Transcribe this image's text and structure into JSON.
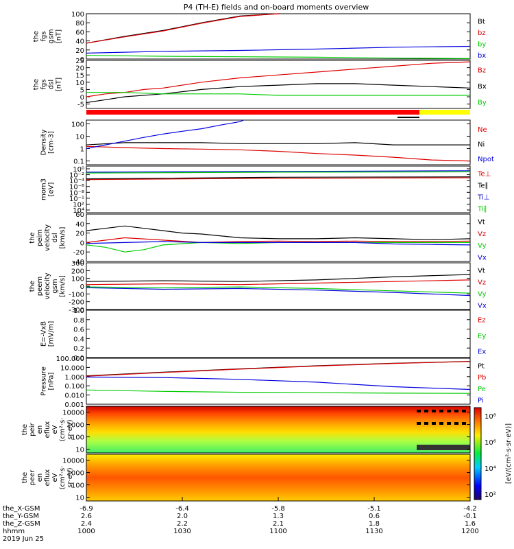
{
  "title": "P4 (TH-E) fields and on-board moments overview",
  "colors": {
    "black": "#000000",
    "red": "#dd0000",
    "green": "#00cc00",
    "blue": "#0000dd",
    "bar_red": "#ff0000",
    "bar_yellow": "#ffff00"
  },
  "x_labels": {
    "rows": [
      {
        "name": "the_X-GSM",
        "values": [
          "-6.9",
          "-6.4",
          "-5.8",
          "-5.1",
          "-4.2"
        ]
      },
      {
        "name": "the_Y-GSM",
        "values": [
          "2.6",
          "2.0",
          "1.3",
          "0.6",
          "-0.1"
        ]
      },
      {
        "name": "the_Z-GSM",
        "values": [
          "2.4",
          "2.2",
          "2.1",
          "1.8",
          "1.6"
        ]
      },
      {
        "name": "hhmm",
        "values": [
          "1000",
          "1030",
          "1100",
          "1130",
          "1200"
        ]
      }
    ],
    "date": "2019 Jun 25"
  },
  "chart_data": [
    {
      "type": "line",
      "ylabel": [
        "the",
        "fgs",
        "gsm",
        "[nT]"
      ],
      "ylim": [
        0,
        100
      ],
      "yticks": [
        "0",
        "20",
        "40",
        "60",
        "80",
        "100"
      ],
      "series": [
        {
          "name": "Bt",
          "color": "black",
          "x": [
            0,
            10,
            20,
            30,
            40,
            50,
            50.5
          ],
          "y": [
            35,
            50,
            63,
            80,
            95,
            100,
            100
          ]
        },
        {
          "name": "bz",
          "color": "red",
          "x": [
            0,
            10,
            20,
            30,
            40,
            50,
            50.5
          ],
          "y": [
            35,
            49,
            62,
            79,
            94,
            100,
            100
          ]
        },
        {
          "name": "by",
          "color": "green",
          "x": [
            0,
            20,
            40,
            60,
            80,
            100
          ],
          "y": [
            8,
            6,
            5,
            4,
            2,
            1
          ]
        },
        {
          "name": "bx",
          "color": "blue",
          "x": [
            0,
            20,
            40,
            60,
            80,
            100
          ],
          "y": [
            13,
            17,
            19,
            22,
            26,
            28
          ]
        }
      ]
    },
    {
      "type": "line",
      "ylabel": [
        "the",
        "fgs",
        "dsl",
        "[nT]"
      ],
      "ylim": [
        -8,
        25
      ],
      "yticks": [
        "-5",
        "0",
        "5",
        "10",
        "15",
        "20",
        "25"
      ],
      "series": [
        {
          "name": "Bz",
          "color": "red",
          "x": [
            0,
            5,
            10,
            15,
            20,
            30,
            40,
            50,
            60,
            70,
            80,
            90,
            100
          ],
          "y": [
            0,
            2,
            3,
            5,
            6,
            10,
            13,
            15,
            17,
            19,
            21,
            23,
            24
          ]
        },
        {
          "name": "Bx",
          "color": "black",
          "x": [
            0,
            5,
            10,
            20,
            30,
            40,
            50,
            60,
            70,
            80,
            90,
            100
          ],
          "y": [
            -4,
            -2,
            0,
            2,
            5,
            7,
            8,
            9,
            9,
            8,
            7,
            6
          ]
        },
        {
          "name": "By",
          "color": "green",
          "x": [
            0,
            10,
            20,
            30,
            40,
            50,
            60,
            70,
            80,
            90,
            100
          ],
          "y": [
            3,
            3,
            2,
            2,
            2,
            1,
            1,
            1,
            1,
            1,
            1
          ]
        }
      ]
    },
    {
      "type": "line",
      "ylabel": [
        "Density",
        "[cm-3]"
      ],
      "yscale": "log",
      "ylim": [
        0.05,
        200
      ],
      "yticks": [
        "0.1",
        "1",
        "10",
        "100"
      ],
      "series": [
        {
          "name": "Ne",
          "color": "red",
          "x": [
            0,
            10,
            20,
            30,
            40,
            50,
            60,
            70,
            80,
            90,
            100
          ],
          "y": [
            1.5,
            1.2,
            1,
            0.9,
            0.8,
            0.6,
            0.4,
            0.3,
            0.2,
            0.12,
            0.1
          ]
        },
        {
          "name": "Ni",
          "color": "black",
          "x": [
            0,
            10,
            20,
            30,
            40,
            50,
            60,
            70,
            80,
            90,
            100
          ],
          "y": [
            2,
            3,
            3,
            3,
            2.5,
            2.5,
            2.5,
            3,
            2,
            2,
            2
          ]
        },
        {
          "name": "Npot",
          "color": "blue",
          "x": [
            0,
            5,
            10,
            15,
            20,
            25,
            30,
            35,
            40,
            41
          ],
          "y": [
            1,
            2,
            4,
            8,
            15,
            25,
            40,
            80,
            150,
            200
          ]
        }
      ]
    },
    {
      "type": "line",
      "ylabel": [
        "mom3",
        "[eV]"
      ],
      "yscale": "log",
      "ylim": [
        1,
        10000
      ],
      "yticks": [
        "10⁰",
        "10⁻²",
        "10⁻⁴",
        "10⁻⁶",
        "10⁻⁸",
        "10⁻¹",
        "10²",
        "10⁴"
      ],
      "series": [
        {
          "name": "Te⊥",
          "color": "red",
          "x": [
            0,
            50,
            100
          ],
          "y": [
            700,
            900,
            1000
          ]
        },
        {
          "name": "Te∥",
          "color": "black",
          "x": [
            0,
            50,
            100
          ],
          "y": [
            800,
            1100,
            1200
          ]
        },
        {
          "name": "Ti⊥",
          "color": "blue",
          "x": [
            0,
            50,
            100
          ],
          "y": [
            3000,
            3500,
            4000
          ]
        },
        {
          "name": "Ti∥",
          "color": "green",
          "x": [
            0,
            50,
            100
          ],
          "y": [
            2500,
            3000,
            3200
          ]
        }
      ]
    },
    {
      "type": "line",
      "ylabel": [
        "the",
        "peim",
        "velocity",
        "dsl",
        "[km/s]"
      ],
      "ylim": [
        -40,
        60
      ],
      "yticks": [
        "-40",
        "-20",
        "0",
        "20",
        "40",
        "60"
      ],
      "series": [
        {
          "name": "Vt",
          "color": "black",
          "x": [
            0,
            5,
            10,
            15,
            20,
            25,
            30,
            40,
            50,
            60,
            70,
            80,
            90,
            100
          ],
          "y": [
            25,
            30,
            35,
            30,
            25,
            20,
            18,
            10,
            8,
            8,
            10,
            8,
            6,
            8
          ]
        },
        {
          "name": "Vz",
          "color": "red",
          "x": [
            0,
            10,
            20,
            30,
            40,
            50,
            60,
            70,
            80,
            90,
            100
          ],
          "y": [
            0,
            10,
            5,
            0,
            2,
            3,
            2,
            3,
            2,
            2,
            3
          ]
        },
        {
          "name": "Vy",
          "color": "green",
          "x": [
            0,
            5,
            10,
            15,
            20,
            30,
            40,
            50,
            60,
            70,
            80,
            90,
            100
          ],
          "y": [
            -5,
            -10,
            -20,
            -15,
            -5,
            0,
            -2,
            0,
            0,
            0,
            0,
            0,
            0
          ]
        },
        {
          "name": "Vx",
          "color": "blue",
          "x": [
            0,
            10,
            20,
            30,
            40,
            50,
            60,
            70,
            80,
            90,
            100
          ],
          "y": [
            -2,
            0,
            2,
            0,
            0,
            0,
            0,
            0,
            -3,
            -4,
            -5
          ]
        }
      ]
    },
    {
      "type": "line",
      "ylabel": [
        "the",
        "peem",
        "velocity",
        "gsm",
        "[km/s]"
      ],
      "ylim": [
        -300,
        300
      ],
      "yticks": [
        "-300",
        "-200",
        "-100",
        "0",
        "100",
        "200",
        "300"
      ],
      "series": [
        {
          "name": "Vt",
          "color": "black",
          "x": [
            0,
            20,
            40,
            60,
            80,
            100
          ],
          "y": [
            60,
            70,
            60,
            80,
            120,
            150
          ]
        },
        {
          "name": "Vz",
          "color": "red",
          "x": [
            0,
            20,
            40,
            60,
            80,
            100
          ],
          "y": [
            20,
            30,
            20,
            40,
            60,
            80
          ]
        },
        {
          "name": "Vy",
          "color": "green",
          "x": [
            0,
            20,
            40,
            60,
            80,
            100
          ],
          "y": [
            -10,
            -20,
            -10,
            -30,
            -60,
            -90
          ]
        },
        {
          "name": "Vx",
          "color": "blue",
          "x": [
            0,
            20,
            40,
            60,
            80,
            100
          ],
          "y": [
            -20,
            -40,
            -30,
            -50,
            -80,
            -120
          ]
        }
      ]
    },
    {
      "type": "line",
      "ylabel": [
        "E=-VxB",
        "[mV/m]"
      ],
      "ylim": [
        0,
        1
      ],
      "yticks": [
        "0.0",
        "0.2",
        "0.4",
        "0.6",
        "0.8",
        "1.0"
      ],
      "series": [
        {
          "name": "Ez",
          "color": "red",
          "x": [],
          "y": []
        },
        {
          "name": "Ey",
          "color": "green",
          "x": [],
          "y": []
        },
        {
          "name": "Ex",
          "color": "blue",
          "x": [],
          "y": []
        }
      ]
    },
    {
      "type": "line",
      "ylabel": [
        "Pressure",
        "[nPa]"
      ],
      "yscale": "log",
      "ylim": [
        0.001,
        100
      ],
      "yticks": [
        "0.001",
        "0.010",
        "0.100",
        "1.000",
        "10.000",
        "100.000"
      ],
      "series": [
        {
          "name": "Pt",
          "color": "black",
          "x": [
            0,
            20,
            40,
            60,
            80,
            100
          ],
          "y": [
            1.2,
            3,
            7,
            15,
            28,
            45
          ]
        },
        {
          "name": "Pb",
          "color": "red",
          "x": [
            0,
            20,
            40,
            60,
            80,
            100
          ],
          "y": [
            1.1,
            2.8,
            6.5,
            14,
            27,
            44
          ]
        },
        {
          "name": "Pe",
          "color": "green",
          "x": [
            0,
            20,
            40,
            60,
            80,
            100
          ],
          "y": [
            0.035,
            0.025,
            0.02,
            0.018,
            0.016,
            0.015
          ]
        },
        {
          "name": "Pi",
          "color": "blue",
          "x": [
            0,
            20,
            40,
            60,
            80,
            100
          ],
          "y": [
            0.9,
            0.8,
            0.5,
            0.25,
            0.08,
            0.04
          ]
        }
      ]
    },
    {
      "type": "heatmap",
      "ylabel": [
        "the",
        "peir",
        "en",
        "eflux",
        "eV",
        "(cm²·s·",
        "sr·eV)"
      ],
      "yscale": "log",
      "ylim": [
        5,
        30000
      ],
      "yticks": [
        "10",
        "100",
        "1000",
        "10000"
      ]
    },
    {
      "type": "heatmap",
      "ylabel": [
        "the",
        "peer",
        "en",
        "eflux",
        "eV",
        "(cm²·s·",
        "sr·eV)"
      ],
      "yscale": "log",
      "ylim": [
        5,
        30000
      ],
      "yticks": [
        "10",
        "100",
        "1000",
        "10000"
      ]
    }
  ],
  "colorbar": {
    "label": "[eV/(cm²·s·sr·eV)]",
    "ticks": [
      "10²",
      "10⁴",
      "10⁶",
      "10⁸"
    ]
  }
}
